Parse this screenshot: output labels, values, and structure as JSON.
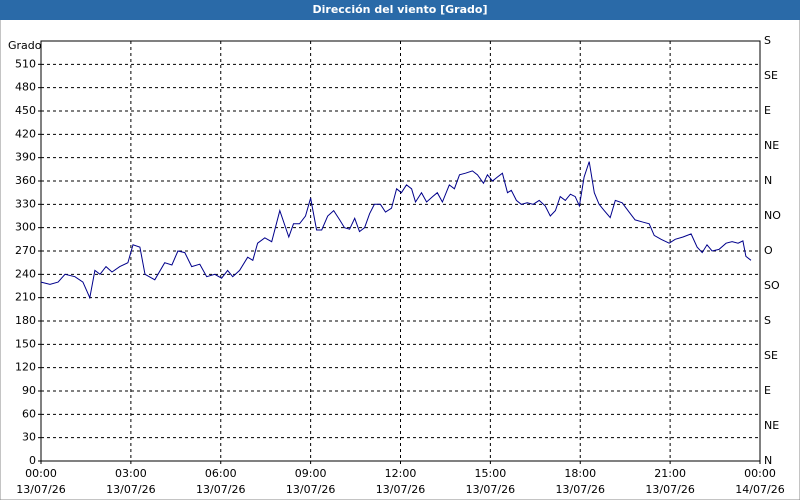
{
  "chart_data": {
    "type": "line",
    "title": "Dirección del viento [Grado]",
    "y_label": "Grado",
    "xlim": [
      0,
      24
    ],
    "xticks": [
      {
        "value": 0,
        "label": "00:00"
      },
      {
        "value": 3,
        "label": "03:00"
      },
      {
        "value": 6,
        "label": "06:00"
      },
      {
        "value": 9,
        "label": "09:00"
      },
      {
        "value": 12,
        "label": "12:00"
      },
      {
        "value": 15,
        "label": "15:00"
      },
      {
        "value": 18,
        "label": "18:00"
      },
      {
        "value": 21,
        "label": "21:00"
      },
      {
        "value": 24,
        "label": "00:00"
      }
    ],
    "xtick_dates": [
      "13/07/26",
      "13/07/26",
      "13/07/26",
      "13/07/26",
      "13/07/26",
      "13/07/26",
      "13/07/26",
      "13/07/26",
      "14/07/26"
    ],
    "ylim": [
      0,
      540
    ],
    "yticks": [
      0,
      30,
      60,
      90,
      120,
      150,
      180,
      210,
      240,
      270,
      300,
      330,
      360,
      390,
      420,
      450,
      480,
      510
    ],
    "y2lim": [
      0,
      540
    ],
    "y2ticks": [
      {
        "value": 0,
        "label": "N"
      },
      {
        "value": 45,
        "label": "NE"
      },
      {
        "value": 90,
        "label": "E"
      },
      {
        "value": 135,
        "label": "SE"
      },
      {
        "value": 180,
        "label": "S"
      },
      {
        "value": 225,
        "label": "SO"
      },
      {
        "value": 270,
        "label": "O"
      },
      {
        "value": 315,
        "label": "NO"
      },
      {
        "value": 360,
        "label": "N"
      },
      {
        "value": 405,
        "label": "NE"
      },
      {
        "value": 450,
        "label": "E"
      },
      {
        "value": 495,
        "label": "SE"
      },
      {
        "value": 540,
        "label": "S"
      }
    ],
    "grid": true,
    "series": [
      {
        "color": "#00008b",
        "x": [
          0,
          0.3,
          0.57,
          0.8,
          1.13,
          1.4,
          1.63,
          1.8,
          1.97,
          2.17,
          2.37,
          2.63,
          2.9,
          3.07,
          3.3,
          3.47,
          3.8,
          4.13,
          4.37,
          4.57,
          4.8,
          5.03,
          5.3,
          5.53,
          5.8,
          6.03,
          6.23,
          6.4,
          6.63,
          6.9,
          7.07,
          7.23,
          7.47,
          7.7,
          7.97,
          8.27,
          8.43,
          8.63,
          8.83,
          9.0,
          9.2,
          9.37,
          9.57,
          9.77,
          9.97,
          10.13,
          10.3,
          10.47,
          10.63,
          10.8,
          10.97,
          11.13,
          11.33,
          11.5,
          11.7,
          11.87,
          12.03,
          12.2,
          12.37,
          12.5,
          12.7,
          12.87,
          13.07,
          13.23,
          13.4,
          13.63,
          13.8,
          13.97,
          14.17,
          14.4,
          14.57,
          14.77,
          14.9,
          15.07,
          15.23,
          15.4,
          15.57,
          15.7,
          15.87,
          16.03,
          16.23,
          16.43,
          16.63,
          16.83,
          17.0,
          17.17,
          17.33,
          17.5,
          17.67,
          17.83,
          17.97,
          18.13,
          18.3,
          18.47,
          18.63,
          18.8,
          19.0,
          19.17,
          19.4,
          19.63,
          19.83,
          20.1,
          20.3,
          20.47,
          20.7,
          20.97,
          21.17,
          21.43,
          21.7,
          21.9,
          22.07,
          22.23,
          22.4,
          22.63,
          22.87,
          23.07,
          23.27,
          23.43,
          23.53,
          23.7
        ],
        "values": [
          230,
          227,
          230,
          240,
          237,
          230,
          210,
          245,
          240,
          250,
          243,
          250,
          255,
          278,
          275,
          240,
          233,
          255,
          252,
          270,
          268,
          250,
          253,
          237,
          240,
          235,
          245,
          237,
          245,
          262,
          258,
          280,
          287,
          282,
          322,
          288,
          305,
          305,
          315,
          338,
          297,
          297,
          315,
          322,
          310,
          300,
          298,
          312,
          295,
          300,
          318,
          330,
          330,
          320,
          325,
          350,
          345,
          355,
          350,
          333,
          345,
          333,
          340,
          345,
          333,
          355,
          350,
          368,
          370,
          373,
          368,
          357,
          368,
          360,
          365,
          370,
          345,
          348,
          335,
          330,
          332,
          330,
          335,
          328,
          315,
          322,
          340,
          335,
          343,
          340,
          328,
          365,
          385,
          345,
          330,
          322,
          313,
          335,
          332,
          320,
          310,
          307,
          305,
          290,
          285,
          280,
          285,
          288,
          292,
          275,
          268,
          278,
          270,
          272,
          280,
          282,
          280,
          283,
          263,
          258
        ]
      }
    ]
  }
}
